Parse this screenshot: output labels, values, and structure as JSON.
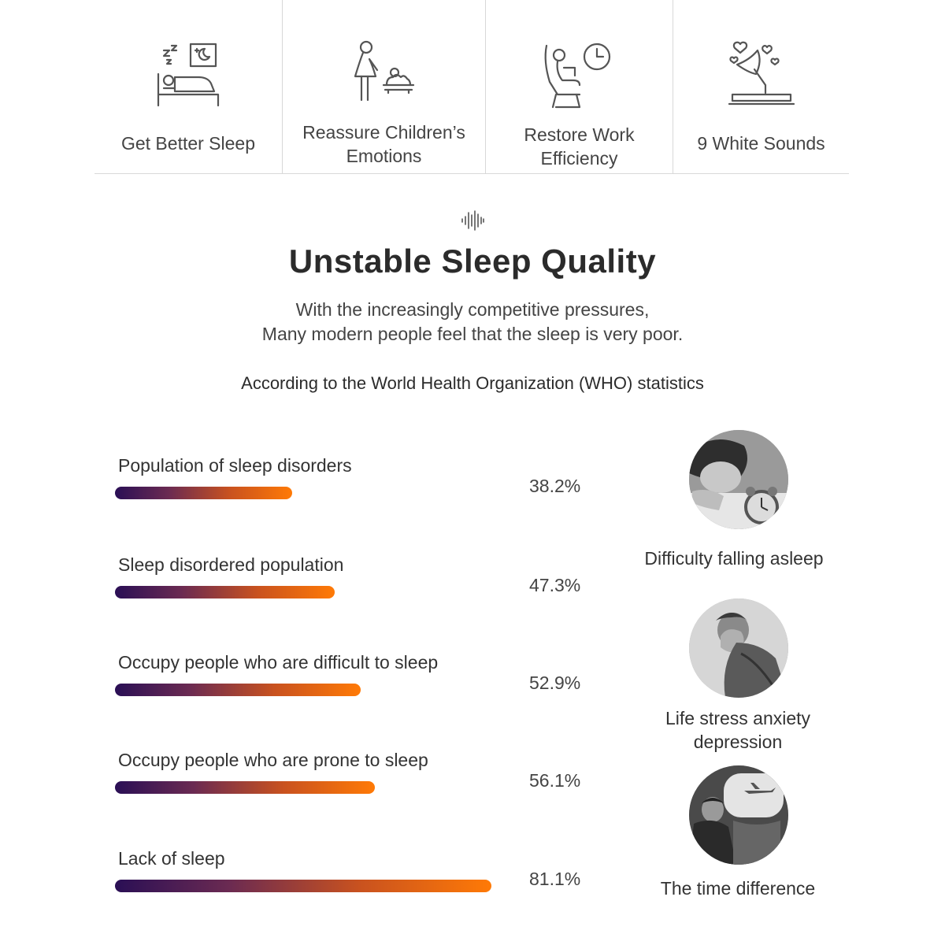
{
  "features": [
    {
      "label": "Get Better Sleep",
      "icon": "sleeping-bed-icon"
    },
    {
      "label": "Reassure Children’s\nEmotions",
      "icon": "mother-baby-icon"
    },
    {
      "label": "Restore Work\nEfficiency",
      "icon": "office-chair-clock-icon"
    },
    {
      "label": "9 White Sounds",
      "icon": "gramophone-hearts-icon"
    }
  ],
  "section": {
    "title": "Unstable Sleep Quality",
    "subtitle": "With the increasingly competitive pressures,\nMany modern people feel that the sleep is very poor.",
    "source": "According to the World Health Organization (WHO) statistics"
  },
  "stats": [
    {
      "label": "Population of sleep disorders",
      "percent": "38.2%",
      "fill": 0.382
    },
    {
      "label": "Sleep disordered population",
      "percent": "47.3%",
      "fill": 0.473
    },
    {
      "label": "Occupy people who are difficult to sleep",
      "percent": "52.9%",
      "fill": 0.529
    },
    {
      "label": "Occupy people who are prone to sleep",
      "percent": "56.1%",
      "fill": 0.561
    },
    {
      "label": "Lack of sleep",
      "percent": "81.1%",
      "fill": 0.811
    }
  ],
  "causes": [
    {
      "label": "Difficulty falling asleep",
      "image": "tired-person-alarm-clock-photo"
    },
    {
      "label": "Life stress anxiety\ndepression",
      "image": "stressed-man-photo"
    },
    {
      "label": "The time difference",
      "image": "airplane-window-traveler-photo"
    }
  ],
  "colors": {
    "bar_start": "#2a0f55",
    "bar_end": "#ff7a06",
    "divider": "#d8d8d8",
    "text": "#333333"
  }
}
